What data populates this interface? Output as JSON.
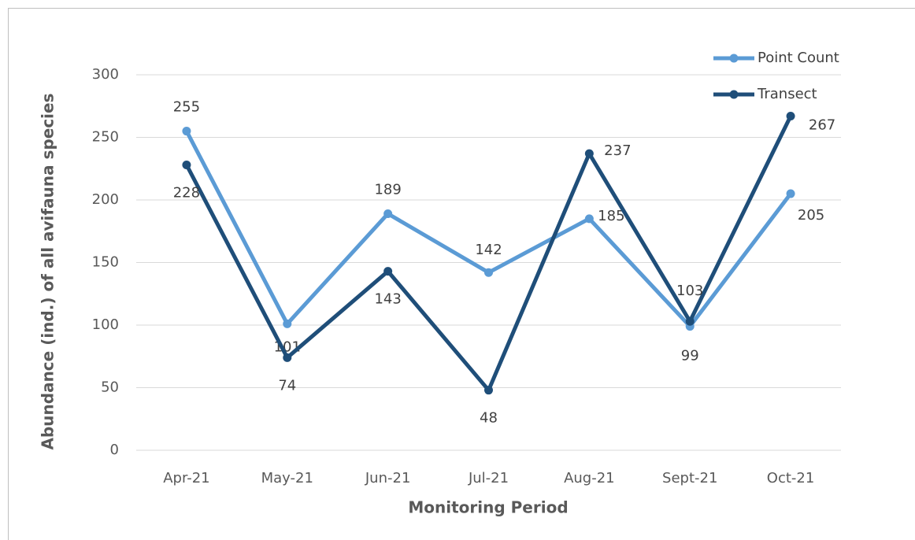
{
  "chart_data": {
    "type": "line",
    "x_label": "Monitoring Period",
    "y_label": "Abundance (ind.) of all avifauna species",
    "categories": [
      "Apr-21",
      "May-21",
      "Jun-21",
      "Jul-21",
      "Aug-21",
      "Sept-21",
      "Oct-21"
    ],
    "series": [
      {
        "name": "Point Count",
        "color": "#5b9bd5",
        "values": [
          255,
          101,
          189,
          142,
          185,
          99,
          205
        ]
      },
      {
        "name": "Transect",
        "color": "#1f4e79",
        "values": [
          228,
          74,
          143,
          48,
          237,
          103,
          267
        ]
      }
    ],
    "ylim": [
      0,
      300
    ],
    "yticks": [
      0,
      50,
      100,
      150,
      200,
      250,
      300
    ],
    "grid": true,
    "legend": "top-right"
  }
}
